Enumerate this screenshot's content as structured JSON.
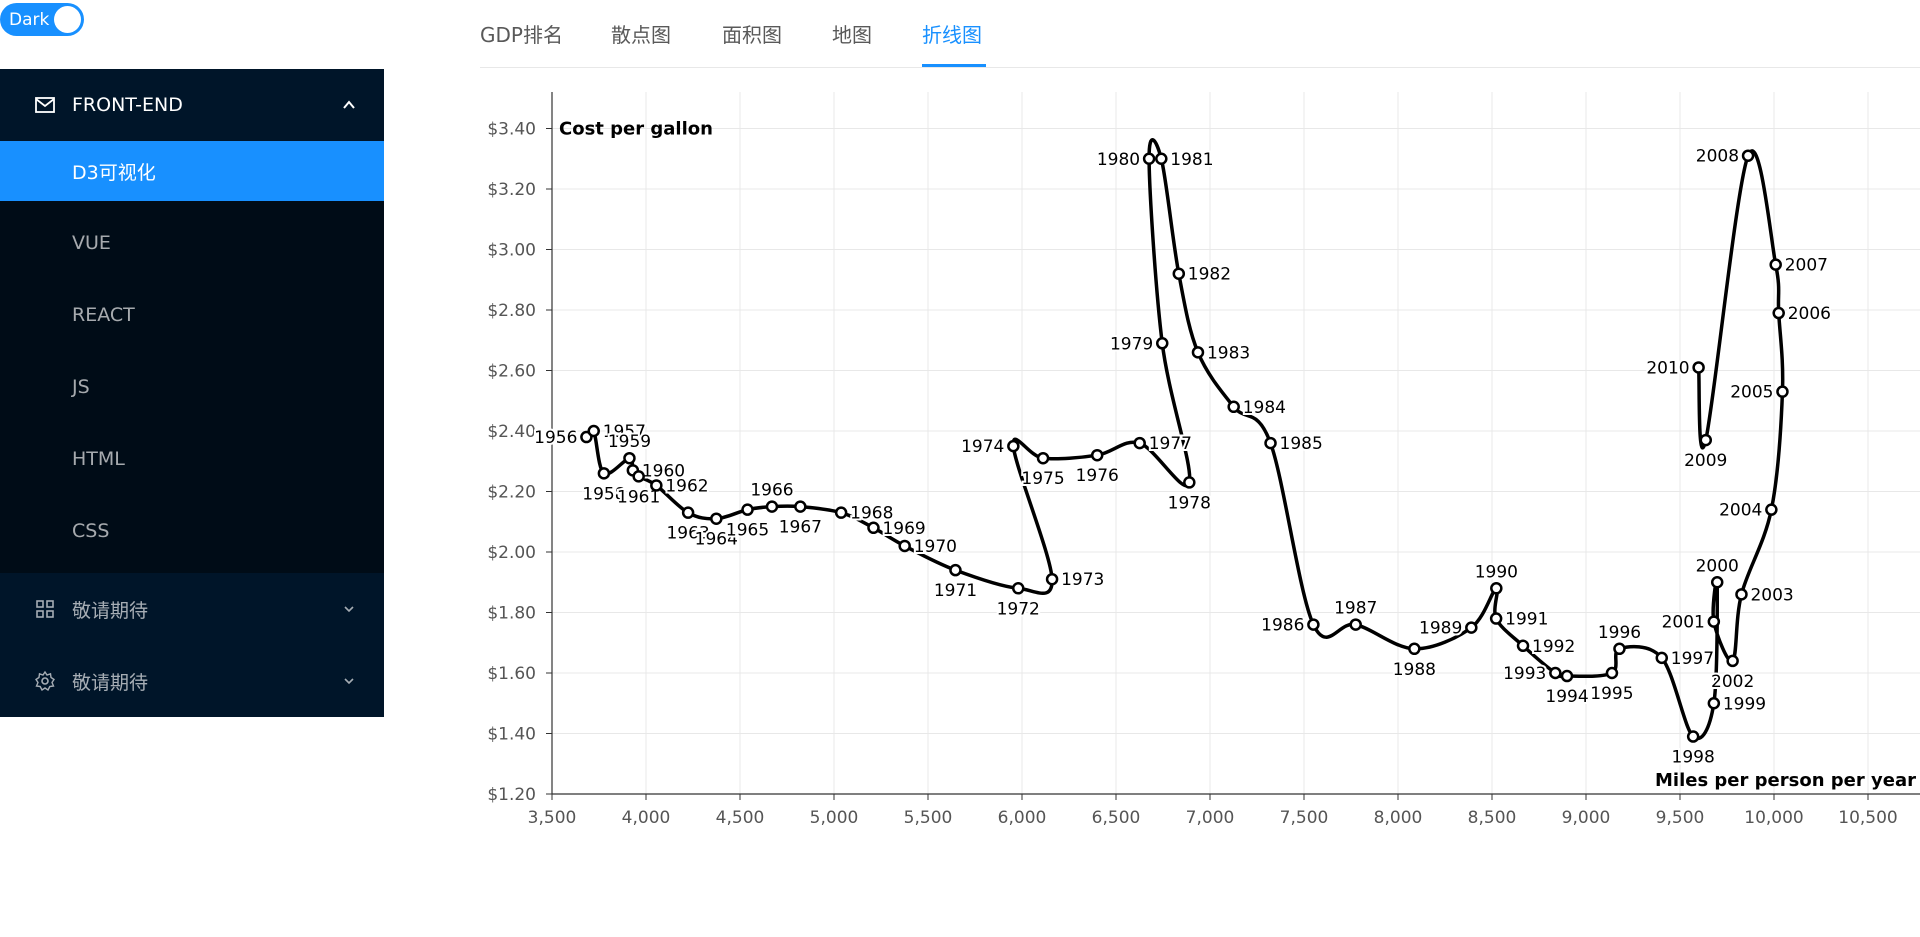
{
  "theme_toggle": {
    "label": "Dark"
  },
  "sidebar": {
    "frontend": {
      "label": "FRONT-END",
      "items": [
        "D3可视化",
        "VUE",
        "REACT",
        "JS",
        "HTML",
        "CSS"
      ],
      "active_index": 0
    },
    "group2": {
      "label": "敬请期待"
    },
    "group3": {
      "label": "敬请期待"
    }
  },
  "tabs": [
    "GDP排名",
    "散点图",
    "面积图",
    "地图",
    "折线图"
  ],
  "active_tab": 4,
  "colors": {
    "accent": "#1890ff",
    "sidebar": "#001529",
    "submenu": "#000c17"
  },
  "chart_data": {
    "type": "line",
    "xlabel": "Miles per person per year",
    "ylabel": "Cost per gallon",
    "xlim": [
      3500,
      10800
    ],
    "ylim": [
      1.2,
      3.5
    ],
    "x_ticks": [
      "3,500",
      "4,000",
      "4,500",
      "5,000",
      "5,500",
      "6,000",
      "6,500",
      "7,000",
      "7,500",
      "8,000",
      "8,500",
      "9,000",
      "9,500",
      "10,000",
      "10,500"
    ],
    "y_ticks": [
      "$1.20",
      "$1.40",
      "$1.60",
      "$1.80",
      "$2.00",
      "$2.20",
      "$2.40",
      "$2.60",
      "$2.80",
      "$3.00",
      "$3.20",
      "$3.40"
    ],
    "grid": true,
    "points": [
      {
        "year": "1956",
        "x": 3683,
        "y": 2.38,
        "label_pos": "left"
      },
      {
        "year": "1957",
        "x": 3722,
        "y": 2.4,
        "label_pos": "right"
      },
      {
        "year": "1958",
        "x": 3776,
        "y": 2.26,
        "label_pos": "below"
      },
      {
        "year": "1959",
        "x": 3912,
        "y": 2.31,
        "label_pos": "above"
      },
      {
        "year": "1960",
        "x": 3930,
        "y": 2.27,
        "label_pos": "right"
      },
      {
        "year": "1961",
        "x": 3961,
        "y": 2.25,
        "label_pos": "below"
      },
      {
        "year": "1962",
        "x": 4055,
        "y": 2.22,
        "label_pos": "right"
      },
      {
        "year": "1963",
        "x": 4224,
        "y": 2.13,
        "label_pos": "below"
      },
      {
        "year": "1964",
        "x": 4374,
        "y": 2.11,
        "label_pos": "below"
      },
      {
        "year": "1965",
        "x": 4540,
        "y": 2.14,
        "label_pos": "below"
      },
      {
        "year": "1966",
        "x": 4670,
        "y": 2.15,
        "label_pos": "above"
      },
      {
        "year": "1967",
        "x": 4821,
        "y": 2.15,
        "label_pos": "below"
      },
      {
        "year": "1968",
        "x": 5038,
        "y": 2.13,
        "label_pos": "right"
      },
      {
        "year": "1969",
        "x": 5210,
        "y": 2.08,
        "label_pos": "right"
      },
      {
        "year": "1970",
        "x": 5376,
        "y": 2.02,
        "label_pos": "right"
      },
      {
        "year": "1971",
        "x": 5646,
        "y": 1.94,
        "label_pos": "below"
      },
      {
        "year": "1972",
        "x": 5980,
        "y": 1.88,
        "label_pos": "below"
      },
      {
        "year": "1973",
        "x": 6160,
        "y": 1.91,
        "label_pos": "right"
      },
      {
        "year": "1974",
        "x": 5954,
        "y": 2.35,
        "label_pos": "left"
      },
      {
        "year": "1975",
        "x": 6112,
        "y": 2.31,
        "label_pos": "below"
      },
      {
        "year": "1976",
        "x": 6400,
        "y": 2.32,
        "label_pos": "below"
      },
      {
        "year": "1977",
        "x": 6626,
        "y": 2.36,
        "label_pos": "right"
      },
      {
        "year": "1978",
        "x": 6890,
        "y": 2.23,
        "label_pos": "below"
      },
      {
        "year": "1979",
        "x": 6746,
        "y": 2.69,
        "label_pos": "left"
      },
      {
        "year": "1980",
        "x": 6676,
        "y": 3.3,
        "label_pos": "left"
      },
      {
        "year": "1981",
        "x": 6741,
        "y": 3.3,
        "label_pos": "right"
      },
      {
        "year": "1982",
        "x": 6834,
        "y": 2.92,
        "label_pos": "right"
      },
      {
        "year": "1983",
        "x": 6936,
        "y": 2.66,
        "label_pos": "right"
      },
      {
        "year": "1984",
        "x": 7126,
        "y": 2.48,
        "label_pos": "right"
      },
      {
        "year": "1985",
        "x": 7322,
        "y": 2.36,
        "label_pos": "right"
      },
      {
        "year": "1986",
        "x": 7550,
        "y": 1.76,
        "label_pos": "left"
      },
      {
        "year": "1987",
        "x": 7775,
        "y": 1.76,
        "label_pos": "above"
      },
      {
        "year": "1988",
        "x": 8087,
        "y": 1.68,
        "label_pos": "below"
      },
      {
        "year": "1989",
        "x": 8390,
        "y": 1.75,
        "label_pos": "left"
      },
      {
        "year": "1990",
        "x": 8523,
        "y": 1.88,
        "label_pos": "above"
      },
      {
        "year": "1991",
        "x": 8522,
        "y": 1.78,
        "label_pos": "right"
      },
      {
        "year": "1992",
        "x": 8665,
        "y": 1.69,
        "label_pos": "right"
      },
      {
        "year": "1993",
        "x": 8837,
        "y": 1.6,
        "label_pos": "left"
      },
      {
        "year": "1994",
        "x": 8899,
        "y": 1.59,
        "label_pos": "below"
      },
      {
        "year": "1995",
        "x": 9138,
        "y": 1.6,
        "label_pos": "below"
      },
      {
        "year": "1996",
        "x": 9178,
        "y": 1.68,
        "label_pos": "above"
      },
      {
        "year": "1997",
        "x": 9403,
        "y": 1.65,
        "label_pos": "right"
      },
      {
        "year": "1998",
        "x": 9570,
        "y": 1.39,
        "label_pos": "below"
      },
      {
        "year": "1999",
        "x": 9680,
        "y": 1.5,
        "label_pos": "right"
      },
      {
        "year": "2000",
        "x": 9698,
        "y": 1.9,
        "label_pos": "above"
      },
      {
        "year": "2001",
        "x": 9680,
        "y": 1.77,
        "label_pos": "left"
      },
      {
        "year": "2002",
        "x": 9780,
        "y": 1.64,
        "label_pos": "below"
      },
      {
        "year": "2003",
        "x": 9827,
        "y": 1.86,
        "label_pos": "right"
      },
      {
        "year": "2004",
        "x": 9986,
        "y": 2.14,
        "label_pos": "left"
      },
      {
        "year": "2005",
        "x": 10045,
        "y": 2.53,
        "label_pos": "left"
      },
      {
        "year": "2006",
        "x": 10025,
        "y": 2.79,
        "label_pos": "right"
      },
      {
        "year": "2007",
        "x": 10009,
        "y": 2.95,
        "label_pos": "right"
      },
      {
        "year": "2008",
        "x": 9862,
        "y": 3.31,
        "label_pos": "left"
      },
      {
        "year": "2009",
        "x": 9637,
        "y": 2.37,
        "label_pos": "below"
      },
      {
        "year": "2010",
        "x": 9599,
        "y": 2.61,
        "label_pos": "left"
      }
    ]
  }
}
